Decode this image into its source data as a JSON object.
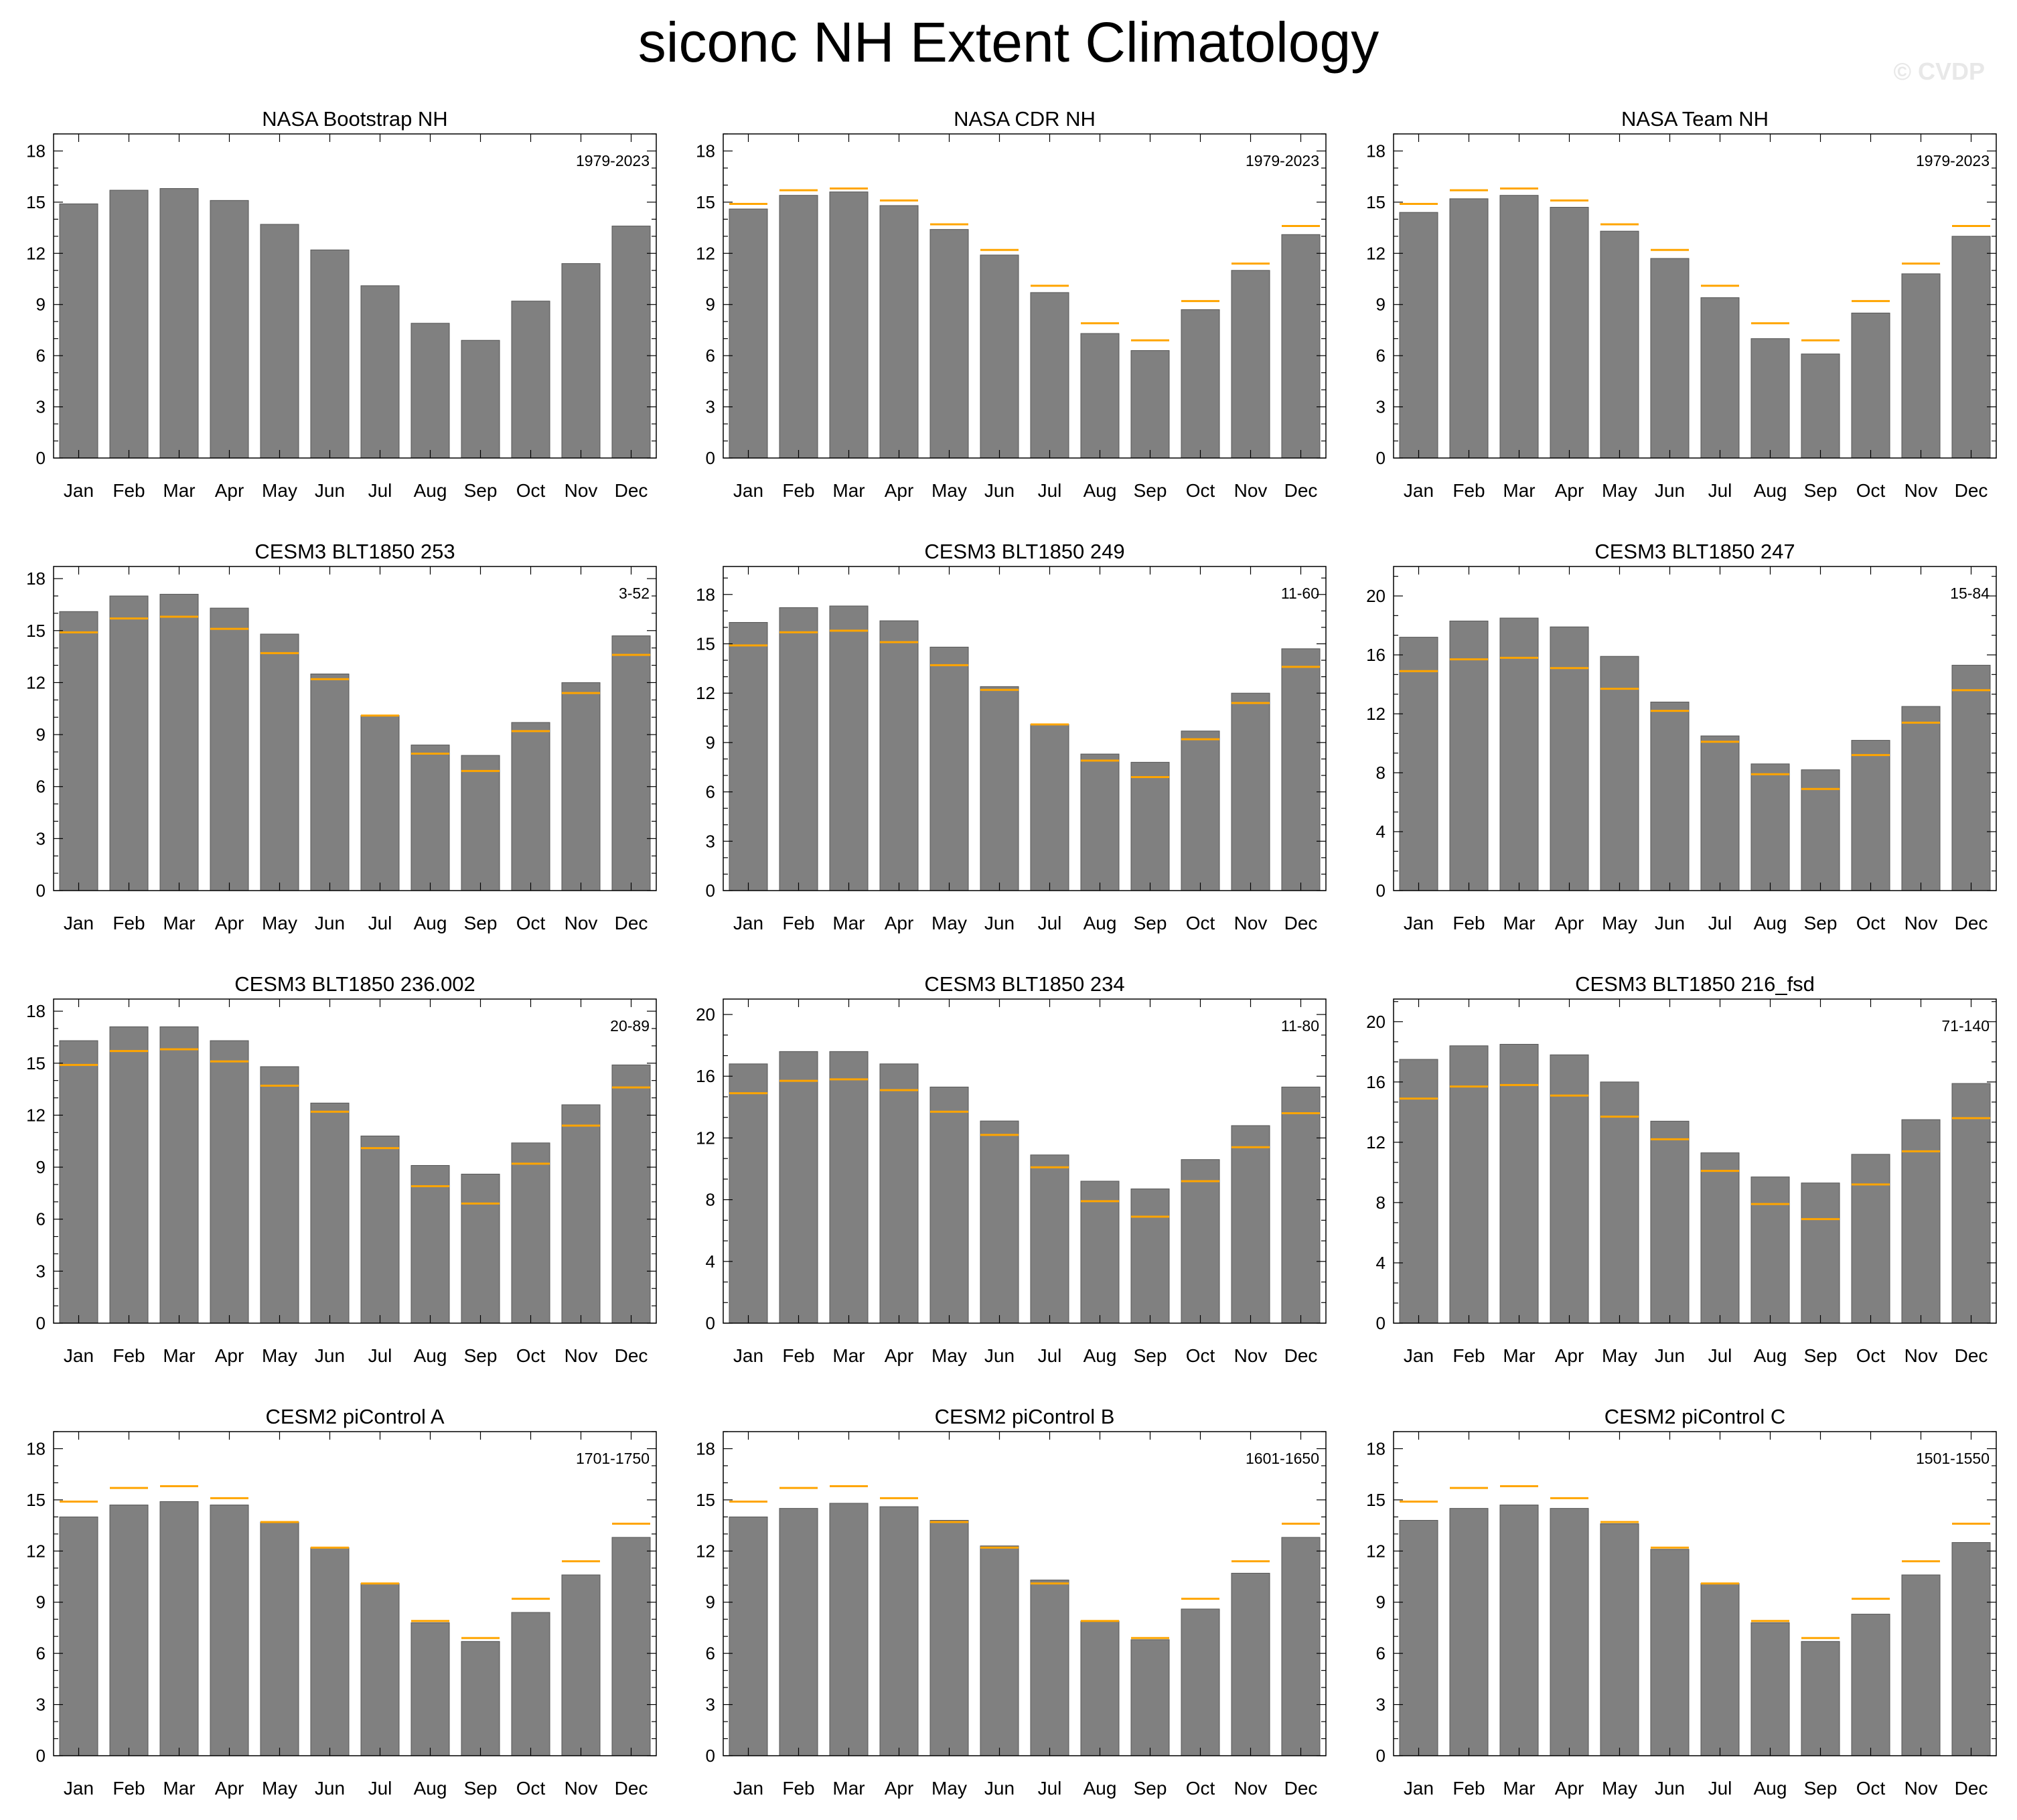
{
  "title": "siconc NH Extent Climatology",
  "watermark": "© CVDP",
  "colors": {
    "bar": "#808080",
    "bar_edge": "#555555",
    "reference_line": "#FFA500",
    "highlight_title": "#FFA500",
    "axis": "#000000"
  },
  "chart_data": [
    {
      "type": "bar",
      "title": "NASA Bootstrap NH",
      "title_highlight": true,
      "period": "1979-2023",
      "categories": [
        "Jan",
        "Feb",
        "Mar",
        "Apr",
        "May",
        "Jun",
        "Jul",
        "Aug",
        "Sep",
        "Oct",
        "Nov",
        "Dec"
      ],
      "ylim": [
        0,
        19
      ],
      "yticks": [
        0,
        3,
        6,
        9,
        12,
        15,
        18
      ],
      "values": [
        14.9,
        15.7,
        15.8,
        15.1,
        13.7,
        12.2,
        10.1,
        7.9,
        6.9,
        9.2,
        11.4,
        13.6
      ],
      "reference": null
    },
    {
      "type": "bar",
      "title": "NASA CDR NH",
      "period": "1979-2023",
      "categories": [
        "Jan",
        "Feb",
        "Mar",
        "Apr",
        "May",
        "Jun",
        "Jul",
        "Aug",
        "Sep",
        "Oct",
        "Nov",
        "Dec"
      ],
      "ylim": [
        0,
        19
      ],
      "yticks": [
        0,
        3,
        6,
        9,
        12,
        15,
        18
      ],
      "values": [
        14.6,
        15.4,
        15.6,
        14.8,
        13.4,
        11.9,
        9.7,
        7.3,
        6.3,
        8.7,
        11.0,
        13.1
      ],
      "reference": [
        14.9,
        15.7,
        15.8,
        15.1,
        13.7,
        12.2,
        10.1,
        7.9,
        6.9,
        9.2,
        11.4,
        13.6
      ]
    },
    {
      "type": "bar",
      "title": "NASA Team NH",
      "period": "1979-2023",
      "categories": [
        "Jan",
        "Feb",
        "Mar",
        "Apr",
        "May",
        "Jun",
        "Jul",
        "Aug",
        "Sep",
        "Oct",
        "Nov",
        "Dec"
      ],
      "ylim": [
        0,
        19
      ],
      "yticks": [
        0,
        3,
        6,
        9,
        12,
        15,
        18
      ],
      "values": [
        14.4,
        15.2,
        15.4,
        14.7,
        13.3,
        11.7,
        9.4,
        7.0,
        6.1,
        8.5,
        10.8,
        13.0
      ],
      "reference": [
        14.9,
        15.7,
        15.8,
        15.1,
        13.7,
        12.2,
        10.1,
        7.9,
        6.9,
        9.2,
        11.4,
        13.6
      ]
    },
    {
      "type": "bar",
      "title": "CESM3 BLT1850 253",
      "period": "3-52",
      "categories": [
        "Jan",
        "Feb",
        "Mar",
        "Apr",
        "May",
        "Jun",
        "Jul",
        "Aug",
        "Sep",
        "Oct",
        "Nov",
        "Dec"
      ],
      "ylim": [
        0,
        18.7
      ],
      "yticks": [
        0,
        3,
        6,
        9,
        12,
        15,
        18
      ],
      "values": [
        16.1,
        17.0,
        17.1,
        16.3,
        14.8,
        12.5,
        10.1,
        8.4,
        7.8,
        9.7,
        12.0,
        14.7
      ],
      "reference": [
        14.9,
        15.7,
        15.8,
        15.1,
        13.7,
        12.2,
        10.1,
        7.9,
        6.9,
        9.2,
        11.4,
        13.6
      ]
    },
    {
      "type": "bar",
      "title": "CESM3 BLT1850 249",
      "period": "11-60",
      "categories": [
        "Jan",
        "Feb",
        "Mar",
        "Apr",
        "May",
        "Jun",
        "Jul",
        "Aug",
        "Sep",
        "Oct",
        "Nov",
        "Dec"
      ],
      "ylim": [
        0,
        19.7
      ],
      "yticks": [
        0,
        3,
        6,
        9,
        12,
        15,
        18
      ],
      "values": [
        16.3,
        17.2,
        17.3,
        16.4,
        14.8,
        12.4,
        10.1,
        8.3,
        7.8,
        9.7,
        12.0,
        14.7
      ],
      "reference": [
        14.9,
        15.7,
        15.8,
        15.1,
        13.7,
        12.2,
        10.1,
        7.9,
        6.9,
        9.2,
        11.4,
        13.6
      ]
    },
    {
      "type": "bar",
      "title": "CESM3 BLT1850 247",
      "period": "15-84",
      "categories": [
        "Jan",
        "Feb",
        "Mar",
        "Apr",
        "May",
        "Jun",
        "Jul",
        "Aug",
        "Sep",
        "Oct",
        "Nov",
        "Dec"
      ],
      "ylim": [
        0,
        22
      ],
      "yticks": [
        0,
        4,
        8,
        12,
        16,
        20
      ],
      "values": [
        17.2,
        18.3,
        18.5,
        17.9,
        15.9,
        12.8,
        10.5,
        8.6,
        8.2,
        10.2,
        12.5,
        15.3
      ],
      "reference": [
        14.9,
        15.7,
        15.8,
        15.1,
        13.7,
        12.2,
        10.1,
        7.9,
        6.9,
        9.2,
        11.4,
        13.6
      ]
    },
    {
      "type": "bar",
      "title": "CESM3 BLT1850 236.002",
      "period": "20-89",
      "categories": [
        "Jan",
        "Feb",
        "Mar",
        "Apr",
        "May",
        "Jun",
        "Jul",
        "Aug",
        "Sep",
        "Oct",
        "Nov",
        "Dec"
      ],
      "ylim": [
        0,
        18.7
      ],
      "yticks": [
        0,
        3,
        6,
        9,
        12,
        15,
        18
      ],
      "values": [
        16.3,
        17.1,
        17.1,
        16.3,
        14.8,
        12.7,
        10.8,
        9.1,
        8.6,
        10.4,
        12.6,
        14.9
      ],
      "reference": [
        14.9,
        15.7,
        15.8,
        15.1,
        13.7,
        12.2,
        10.1,
        7.9,
        6.9,
        9.2,
        11.4,
        13.6
      ]
    },
    {
      "type": "bar",
      "title": "CESM3 BLT1850 234",
      "period": "11-80",
      "categories": [
        "Jan",
        "Feb",
        "Mar",
        "Apr",
        "May",
        "Jun",
        "Jul",
        "Aug",
        "Sep",
        "Oct",
        "Nov",
        "Dec"
      ],
      "ylim": [
        0,
        21
      ],
      "yticks": [
        0,
        4,
        8,
        12,
        16,
        20
      ],
      "values": [
        16.8,
        17.6,
        17.6,
        16.8,
        15.3,
        13.1,
        10.9,
        9.2,
        8.7,
        10.6,
        12.8,
        15.3
      ],
      "reference": [
        14.9,
        15.7,
        15.8,
        15.1,
        13.7,
        12.2,
        10.1,
        7.9,
        6.9,
        9.2,
        11.4,
        13.6
      ]
    },
    {
      "type": "bar",
      "title": "CESM3 BLT1850 216_fsd",
      "period": "71-140",
      "categories": [
        "Jan",
        "Feb",
        "Mar",
        "Apr",
        "May",
        "Jun",
        "Jul",
        "Aug",
        "Sep",
        "Oct",
        "Nov",
        "Dec"
      ],
      "ylim": [
        0,
        21.5
      ],
      "yticks": [
        0,
        4,
        8,
        12,
        16,
        20
      ],
      "values": [
        17.5,
        18.4,
        18.5,
        17.8,
        16.0,
        13.4,
        11.3,
        9.7,
        9.3,
        11.2,
        13.5,
        15.9
      ],
      "reference": [
        14.9,
        15.7,
        15.8,
        15.1,
        13.7,
        12.2,
        10.1,
        7.9,
        6.9,
        9.2,
        11.4,
        13.6
      ]
    },
    {
      "type": "bar",
      "title": "CESM2 piControl A",
      "period": "1701-1750",
      "categories": [
        "Jan",
        "Feb",
        "Mar",
        "Apr",
        "May",
        "Jun",
        "Jul",
        "Aug",
        "Sep",
        "Oct",
        "Nov",
        "Dec"
      ],
      "ylim": [
        0,
        19
      ],
      "yticks": [
        0,
        3,
        6,
        9,
        12,
        15,
        18
      ],
      "values": [
        14.0,
        14.7,
        14.9,
        14.7,
        13.7,
        12.2,
        10.1,
        7.8,
        6.7,
        8.4,
        10.6,
        12.8
      ],
      "reference": [
        14.9,
        15.7,
        15.8,
        15.1,
        13.7,
        12.2,
        10.1,
        7.9,
        6.9,
        9.2,
        11.4,
        13.6
      ]
    },
    {
      "type": "bar",
      "title": "CESM2 piControl B",
      "period": "1601-1650",
      "categories": [
        "Jan",
        "Feb",
        "Mar",
        "Apr",
        "May",
        "Jun",
        "Jul",
        "Aug",
        "Sep",
        "Oct",
        "Nov",
        "Dec"
      ],
      "ylim": [
        0,
        19
      ],
      "yticks": [
        0,
        3,
        6,
        9,
        12,
        15,
        18
      ],
      "values": [
        14.0,
        14.5,
        14.8,
        14.6,
        13.8,
        12.3,
        10.3,
        7.9,
        6.8,
        8.6,
        10.7,
        12.8
      ],
      "reference": [
        14.9,
        15.7,
        15.8,
        15.1,
        13.7,
        12.2,
        10.1,
        7.9,
        6.9,
        9.2,
        11.4,
        13.6
      ]
    },
    {
      "type": "bar",
      "title": "CESM2 piControl C",
      "period": "1501-1550",
      "categories": [
        "Jan",
        "Feb",
        "Mar",
        "Apr",
        "May",
        "Jun",
        "Jul",
        "Aug",
        "Sep",
        "Oct",
        "Nov",
        "Dec"
      ],
      "ylim": [
        0,
        19
      ],
      "yticks": [
        0,
        3,
        6,
        9,
        12,
        15,
        18
      ],
      "values": [
        13.8,
        14.5,
        14.7,
        14.5,
        13.6,
        12.1,
        10.1,
        7.8,
        6.7,
        8.3,
        10.6,
        12.5
      ],
      "reference": [
        14.9,
        15.7,
        15.8,
        15.1,
        13.7,
        12.2,
        10.1,
        7.9,
        6.9,
        9.2,
        11.4,
        13.6
      ]
    }
  ]
}
